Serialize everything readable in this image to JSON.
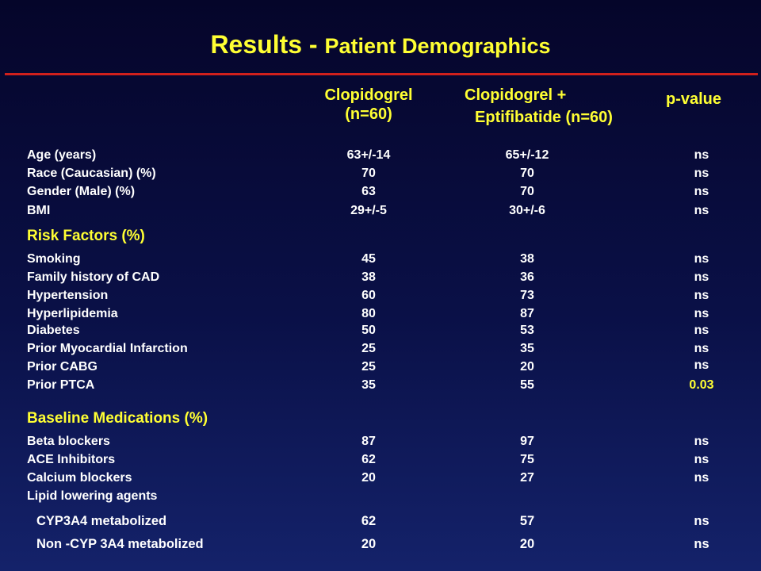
{
  "title": {
    "main": "Results - ",
    "sub": "Patient Demographics"
  },
  "columns": {
    "col1_line1": "Clopidogrel",
    "col1_line2": "(n=60)",
    "col2_line1": "Clopidogrel +",
    "col2_line2": "Eptifibatide (n=60)",
    "col3": "p-value"
  },
  "demographics": [
    {
      "label": "Age (years)",
      "c1": "63+/-14",
      "c2": "65+/-12",
      "p": "ns"
    },
    {
      "label": "Race (Caucasian)  (%)",
      "c1": "70",
      "c2": "70",
      "p": "ns"
    },
    {
      "label": "Gender (Male)   (%)",
      "c1": "63",
      "c2": "70",
      "p": "ns"
    },
    {
      "label": "BMI",
      "c1": "29+/-5",
      "c2": "30+/-6",
      "p": "ns"
    }
  ],
  "risk_factors": {
    "heading": "Risk Factors (%)",
    "rows": [
      {
        "label": "Smoking",
        "c1": "45",
        "c2": "38",
        "p": "ns"
      },
      {
        "label": "Family history of CAD",
        "c1": "38",
        "c2": "36",
        "p": "ns"
      },
      {
        "label": "Hypertension",
        "c1": "60",
        "c2": "73",
        "p": "ns"
      },
      {
        "label": "Hyperlipidemia",
        "c1": "80",
        "c2": "87",
        "p": "ns"
      },
      {
        "label": "Diabetes",
        "c1": "50",
        "c2": "53",
        "p": "ns"
      },
      {
        "label": "Prior Myocardial Infarction",
        "c1": "25",
        "c2": "35",
        "p": "ns"
      },
      {
        "label": "Prior CABG",
        "c1": "25",
        "c2": "20",
        "p": "ns"
      },
      {
        "label": "Prior PTCA",
        "c1": "35",
        "c2": "55",
        "p": "0.03"
      }
    ]
  },
  "medications": {
    "heading": "Baseline Medications (%)",
    "rows": [
      {
        "label": "Beta blockers",
        "c1": "87",
        "c2": "97",
        "p": "ns"
      },
      {
        "label": "ACE Inhibitors",
        "c1": "62",
        "c2": "75",
        "p": "ns"
      },
      {
        "label": "Calcium blockers",
        "c1": "20",
        "c2": "27",
        "p": "ns"
      },
      {
        "label": "Lipid lowering agents",
        "c1": "",
        "c2": "",
        "p": ""
      },
      {
        "label": "CYP3A4 metabolized",
        "c1": "62",
        "c2": "57",
        "p": "ns"
      },
      {
        "label": "Non -CYP 3A4 metabolized",
        "c1": "20",
        "c2": "20",
        "p": "ns"
      }
    ]
  },
  "colors": {
    "background": "#0a1047",
    "title": "#ffff33",
    "rule": "#d0201c",
    "text": "#ffffff"
  }
}
